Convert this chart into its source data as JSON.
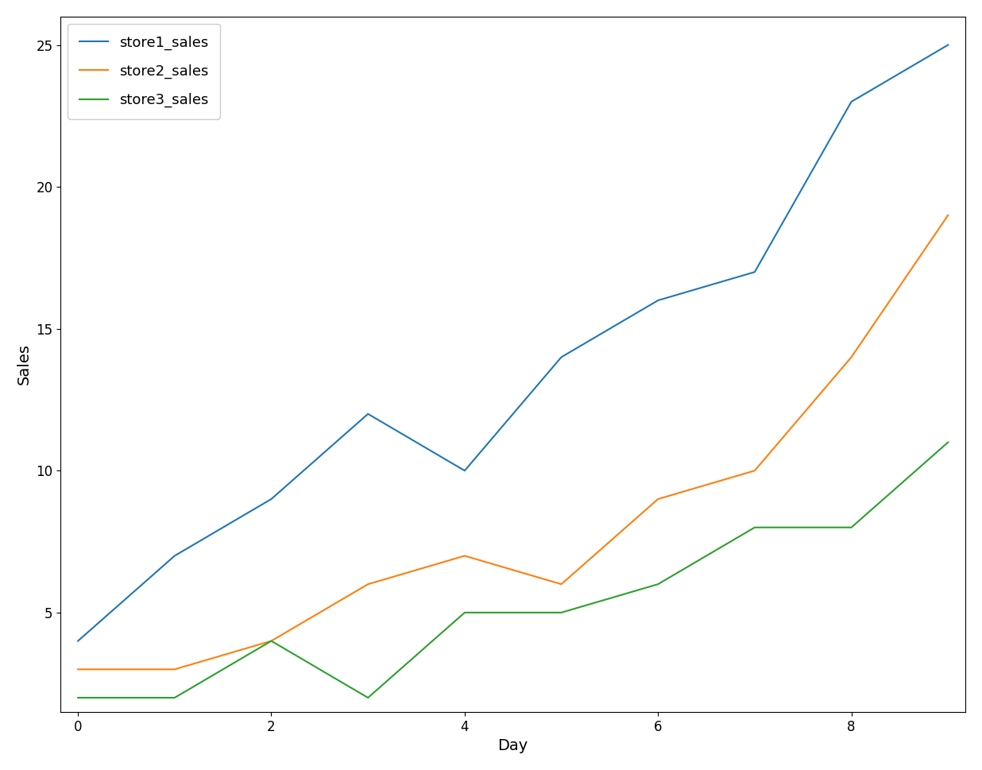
{
  "x": [
    0,
    1,
    2,
    3,
    4,
    5,
    6,
    7,
    8,
    9
  ],
  "store1_sales": [
    4,
    7,
    9,
    12,
    10,
    14,
    16,
    17,
    23,
    25
  ],
  "store2_sales": [
    3,
    3,
    4,
    6,
    7,
    6,
    9,
    10,
    14,
    19
  ],
  "store3_sales": [
    2,
    2,
    4,
    2,
    5,
    5,
    6,
    8,
    8,
    11
  ],
  "colors": {
    "store1_sales": "#1f77b4",
    "store2_sales": "#ff7f0e",
    "store3_sales": "#2ca02c"
  },
  "xlabel": "Day",
  "ylabel": "Sales",
  "legend_labels": [
    "store1_sales",
    "store2_sales",
    "store3_sales"
  ],
  "legend_loc": "upper left",
  "xlim": [
    -0.18,
    9.18
  ],
  "ylim": [
    1.5,
    26.0
  ],
  "xticks": [
    0,
    2,
    4,
    6,
    8
  ],
  "yticks": [
    5,
    10,
    15,
    20,
    25
  ]
}
